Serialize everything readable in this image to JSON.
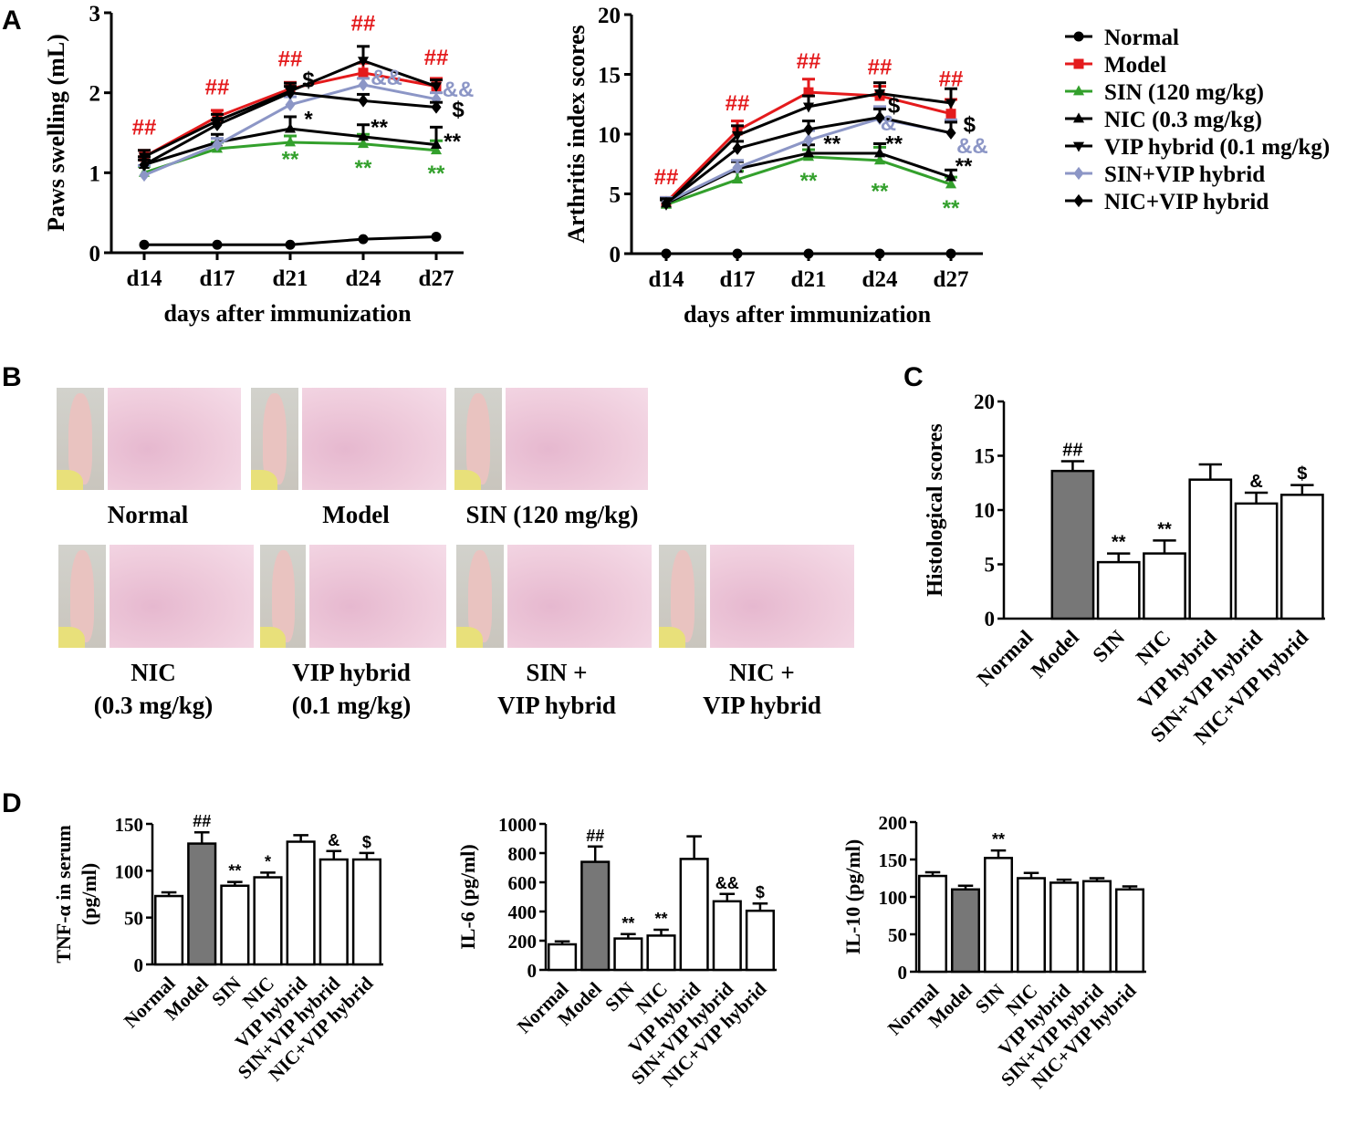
{
  "panel_labels": {
    "a": "A",
    "b": "B",
    "c": "C",
    "d": "D"
  },
  "colors": {
    "normal": "#000000",
    "model": "#e41a1c",
    "sin": "#33a02c",
    "nic": "#000000",
    "vip": "#000000",
    "sin_vip": "#8c96c6",
    "nic_vip": "#000000",
    "grey_bar": "#777777",
    "hash": "#e41a1c",
    "paw_skin": "#e9c3c0",
    "paw_bg": "#d2d2cc",
    "he_stain": "#efccdc"
  },
  "legend": [
    {
      "label": "Normal",
      "color": "#000000",
      "marker": "circle"
    },
    {
      "label": "Model",
      "color": "#e41a1c",
      "marker": "square"
    },
    {
      "label": "SIN (120 mg/kg)",
      "color": "#33a02c",
      "marker": "triangle-up"
    },
    {
      "label": "NIC (0.3 mg/kg)",
      "color": "#000000",
      "marker": "triangle-up"
    },
    {
      "label": "VIP hybrid (0.1 mg/kg)",
      "color": "#000000",
      "marker": "triangle-down"
    },
    {
      "label": "SIN+VIP hybrid",
      "color": "#8c96c6",
      "marker": "diamond"
    },
    {
      "label": "NIC+VIP hybrid",
      "color": "#000000",
      "marker": "diamond"
    }
  ],
  "photos": {
    "row1": [
      {
        "caption": [
          "Normal"
        ]
      },
      {
        "caption": [
          "Model"
        ]
      },
      {
        "caption": [
          "SIN (120 mg/kg)"
        ]
      }
    ],
    "row2": [
      {
        "caption": [
          "NIC",
          "(0.3 mg/kg)"
        ]
      },
      {
        "caption": [
          "VIP hybrid",
          "(0.1 mg/kg)"
        ]
      },
      {
        "caption": [
          "SIN +",
          "VIP hybrid"
        ]
      },
      {
        "caption": [
          "NIC +",
          "VIP hybrid"
        ]
      }
    ]
  },
  "chart_data": [
    {
      "id": "paws",
      "type": "line",
      "xlabel": "days after immunization",
      "ylabel": "Paws swelling (mL)",
      "categories": [
        "d14",
        "d17",
        "d21",
        "d24",
        "d27"
      ],
      "ylim": [
        0,
        3
      ],
      "yticks": [
        0,
        1,
        2,
        3
      ],
      "series": [
        {
          "name": "Normal",
          "values": [
            0.1,
            0.1,
            0.1,
            0.17,
            0.2
          ],
          "err": [
            0,
            0,
            0,
            0,
            0
          ]
        },
        {
          "name": "Model",
          "values": [
            1.2,
            1.7,
            2.05,
            2.25,
            2.08
          ],
          "err": [
            0.08,
            0.08,
            0.08,
            0.12,
            0.1
          ]
        },
        {
          "name": "SIN (120 mg/kg)",
          "values": [
            1.0,
            1.3,
            1.38,
            1.36,
            1.28
          ],
          "err": [
            0.08,
            0.08,
            0.08,
            0.12,
            0.12
          ]
        },
        {
          "name": "NIC (0.3 mg/kg)",
          "values": [
            1.1,
            1.38,
            1.55,
            1.45,
            1.35
          ],
          "err": [
            0.1,
            0.1,
            0.15,
            0.15,
            0.22
          ]
        },
        {
          "name": "VIP hybrid (0.1 mg/kg)",
          "values": [
            1.2,
            1.65,
            2.02,
            2.4,
            2.08
          ],
          "err": [
            0.08,
            0.08,
            0.1,
            0.18,
            0.08
          ]
        },
        {
          "name": "SIN+VIP hybrid",
          "values": [
            0.97,
            1.35,
            1.85,
            2.1,
            1.92
          ],
          "err": [
            0.12,
            0.08,
            0.1,
            0.08,
            0.08
          ]
        },
        {
          "name": "NIC+VIP hybrid",
          "values": [
            1.1,
            1.6,
            2.0,
            1.9,
            1.82
          ],
          "err": [
            0.06,
            0.06,
            0.08,
            0.08,
            0.06
          ]
        }
      ],
      "annotations": [
        {
          "text": "##",
          "color": "#e41a1c",
          "x": 0,
          "y": 1.48
        },
        {
          "text": "##",
          "color": "#e41a1c",
          "x": 1,
          "y": 1.98
        },
        {
          "text": "##",
          "color": "#e41a1c",
          "x": 2,
          "y": 2.33
        },
        {
          "text": "##",
          "color": "#e41a1c",
          "x": 3,
          "y": 2.78
        },
        {
          "text": "##",
          "color": "#e41a1c",
          "x": 4,
          "y": 2.35
        },
        {
          "text": "$",
          "color": "#000000",
          "x": 2.25,
          "y": 2.07
        },
        {
          "text": "*",
          "color": "#000000",
          "x": 2.25,
          "y": 1.58
        },
        {
          "text": "**",
          "color": "#000000",
          "x": 3.22,
          "y": 1.48
        },
        {
          "text": "**",
          "color": "#000000",
          "x": 4.22,
          "y": 1.3
        },
        {
          "text": "&&",
          "color": "#8c96c6",
          "x": 3.32,
          "y": 2.1
        },
        {
          "text": "&&",
          "color": "#8c96c6",
          "x": 4.3,
          "y": 1.95
        },
        {
          "text": "$",
          "color": "#000000",
          "x": 4.3,
          "y": 1.7
        },
        {
          "text": "**",
          "color": "#33a02c",
          "x": 2,
          "y": 1.08
        },
        {
          "text": "**",
          "color": "#33a02c",
          "x": 3,
          "y": 0.97
        },
        {
          "text": "**",
          "color": "#33a02c",
          "x": 4,
          "y": 0.9
        }
      ]
    },
    {
      "id": "arthritis",
      "type": "line",
      "xlabel": "days after immunization",
      "ylabel": "Arthritis index scores",
      "categories": [
        "d14",
        "d17",
        "d21",
        "d24",
        "d27"
      ],
      "ylim": [
        0,
        20
      ],
      "yticks": [
        0,
        5,
        10,
        15,
        20
      ],
      "series": [
        {
          "name": "Normal",
          "values": [
            0,
            0,
            0,
            0,
            0
          ],
          "err": [
            0,
            0,
            0,
            0,
            0
          ]
        },
        {
          "name": "Model",
          "values": [
            4.3,
            10.3,
            13.5,
            13.2,
            11.7
          ],
          "err": [
            0.4,
            0.8,
            1.1,
            0.8,
            1.2
          ]
        },
        {
          "name": "SIN (120 mg/kg)",
          "values": [
            4.1,
            6.2,
            8.1,
            7.8,
            5.8
          ],
          "err": [
            0.5,
            0.7,
            0.6,
            1.1,
            0.6
          ]
        },
        {
          "name": "NIC (0.3 mg/kg)",
          "values": [
            4.2,
            7.1,
            8.4,
            8.4,
            6.4
          ],
          "err": [
            0.4,
            0.6,
            0.7,
            0.8,
            0.6
          ]
        },
        {
          "name": "VIP hybrid (0.1 mg/kg)",
          "values": [
            4.1,
            9.9,
            12.3,
            13.4,
            12.6
          ],
          "err": [
            0.4,
            0.8,
            0.9,
            0.9,
            1.2
          ]
        },
        {
          "name": "SIN+VIP hybrid",
          "values": [
            4.3,
            7.2,
            9.5,
            11.3,
            10.1
          ],
          "err": [
            0.4,
            0.6,
            0.8,
            1.0,
            1.1
          ]
        },
        {
          "name": "NIC+VIP hybrid",
          "values": [
            4.2,
            8.8,
            10.4,
            11.4,
            10.1
          ],
          "err": [
            0.4,
            0.6,
            0.7,
            0.7,
            0.9
          ]
        }
      ],
      "annotations": [
        {
          "text": "##",
          "color": "#e41a1c",
          "x": 0,
          "y": 5.8
        },
        {
          "text": "##",
          "color": "#e41a1c",
          "x": 1,
          "y": 12.0
        },
        {
          "text": "##",
          "color": "#e41a1c",
          "x": 2,
          "y": 15.5
        },
        {
          "text": "##",
          "color": "#e41a1c",
          "x": 3,
          "y": 15.0
        },
        {
          "text": "##",
          "color": "#e41a1c",
          "x": 4,
          "y": 14.0
        },
        {
          "text": "**",
          "color": "#000000",
          "x": 2.33,
          "y": 8.6
        },
        {
          "text": "**",
          "color": "#000000",
          "x": 3.2,
          "y": 8.6
        },
        {
          "text": "**",
          "color": "#000000",
          "x": 4.18,
          "y": 6.7
        },
        {
          "text": "$",
          "color": "#000000",
          "x": 3.2,
          "y": 11.8
        },
        {
          "text": "$",
          "color": "#000000",
          "x": 4.26,
          "y": 10.2
        },
        {
          "text": "&",
          "color": "#8c96c6",
          "x": 3.12,
          "y": 10.3
        },
        {
          "text": "&&",
          "color": "#8c96c6",
          "x": 4.3,
          "y": 8.4
        },
        {
          "text": "**",
          "color": "#33a02c",
          "x": 2,
          "y": 5.5
        },
        {
          "text": "**",
          "color": "#33a02c",
          "x": 3,
          "y": 4.6
        },
        {
          "text": "**",
          "color": "#33a02c",
          "x": 4,
          "y": 3.2
        }
      ]
    },
    {
      "id": "histology",
      "type": "bar",
      "ylabel": "Histological scores",
      "categories": [
        "Normal",
        "Model",
        "SIN",
        "NIC",
        "VIP hybrid",
        "SIN+VIP hybrid",
        "NIC+VIP hybrid"
      ],
      "values": [
        0,
        13.6,
        5.2,
        6.0,
        12.8,
        10.6,
        11.4
      ],
      "errors": [
        0,
        0.9,
        0.8,
        1.2,
        1.4,
        1.0,
        0.9
      ],
      "labels": [
        "",
        "##",
        "**",
        "**",
        "",
        "&",
        "$"
      ],
      "ylim": [
        0,
        20
      ],
      "yticks": [
        0,
        5,
        10,
        15,
        20
      ]
    },
    {
      "id": "tnf",
      "type": "bar",
      "ylabel": "TNF-α  in serum",
      "ylabel2": "(pg/ml)",
      "categories": [
        "Normal",
        "Model",
        "SIN",
        "NIC",
        "VIP hybrid",
        "SIN+VIP hybrid",
        "NIC+VIP hybrid"
      ],
      "values": [
        73,
        129,
        84,
        93,
        131,
        112,
        112
      ],
      "errors": [
        4,
        12,
        4,
        5,
        7,
        9,
        7
      ],
      "labels": [
        "",
        "##",
        "**",
        "*",
        "",
        "&",
        "$"
      ],
      "ylim": [
        0,
        150
      ],
      "yticks": [
        0,
        50,
        100,
        150
      ]
    },
    {
      "id": "il6",
      "type": "bar",
      "ylabel": "IL-6 (pg/ml)",
      "categories": [
        "Normal",
        "Model",
        "SIN",
        "NIC",
        "VIP hybrid",
        "SIN+VIP hybrid",
        "NIC+VIP hybrid"
      ],
      "values": [
        175,
        740,
        215,
        235,
        760,
        470,
        405
      ],
      "errors": [
        20,
        105,
        30,
        40,
        155,
        50,
        50
      ],
      "labels": [
        "",
        "##",
        "**",
        "**",
        "",
        "&&",
        "$"
      ],
      "ylim": [
        0,
        1000
      ],
      "yticks": [
        0,
        200,
        400,
        600,
        800,
        1000
      ]
    },
    {
      "id": "il10",
      "type": "bar",
      "ylabel": "IL-10 (pg/ml)",
      "categories": [
        "Normal",
        "Model",
        "SIN",
        "NIC",
        "VIP hybrid",
        "SIN+VIP hybrid",
        "NIC+VIP hybrid"
      ],
      "values": [
        128,
        110,
        152,
        125,
        119,
        121,
        110
      ],
      "errors": [
        5,
        5,
        10,
        7,
        4,
        4,
        4
      ],
      "labels": [
        "",
        "",
        "**",
        "",
        "",
        "",
        ""
      ],
      "ylim": [
        0,
        200
      ],
      "yticks": [
        0,
        50,
        100,
        150,
        200
      ]
    }
  ]
}
